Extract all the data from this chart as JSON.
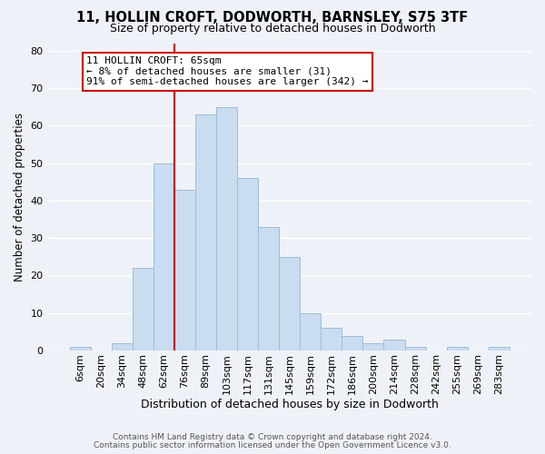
{
  "title": "11, HOLLIN CROFT, DODWORTH, BARNSLEY, S75 3TF",
  "subtitle": "Size of property relative to detached houses in Dodworth",
  "xlabel": "Distribution of detached houses by size in Dodworth",
  "ylabel": "Number of detached properties",
  "bar_labels": [
    "6sqm",
    "20sqm",
    "34sqm",
    "48sqm",
    "62sqm",
    "76sqm",
    "89sqm",
    "103sqm",
    "117sqm",
    "131sqm",
    "145sqm",
    "159sqm",
    "172sqm",
    "186sqm",
    "200sqm",
    "214sqm",
    "228sqm",
    "242sqm",
    "255sqm",
    "269sqm",
    "283sqm"
  ],
  "bar_values": [
    1,
    0,
    2,
    22,
    50,
    43,
    63,
    65,
    46,
    33,
    25,
    10,
    6,
    4,
    2,
    3,
    1,
    0,
    1,
    0,
    1
  ],
  "bar_color": "#c9dcf0",
  "bar_edge_color": "#9dbcd8",
  "vline_color": "#cc0000",
  "annotation_title": "11 HOLLIN CROFT: 65sqm",
  "annotation_line1": "← 8% of detached houses are smaller (31)",
  "annotation_line2": "91% of semi-detached houses are larger (342) →",
  "annotation_box_color": "#ffffff",
  "annotation_box_edge": "#cc0000",
  "ylim": [
    0,
    82
  ],
  "yticks": [
    0,
    10,
    20,
    30,
    40,
    50,
    60,
    70,
    80
  ],
  "footer1": "Contains HM Land Registry data © Crown copyright and database right 2024.",
  "footer2": "Contains public sector information licensed under the Open Government Licence v3.0.",
  "background_color": "#eef2f8"
}
